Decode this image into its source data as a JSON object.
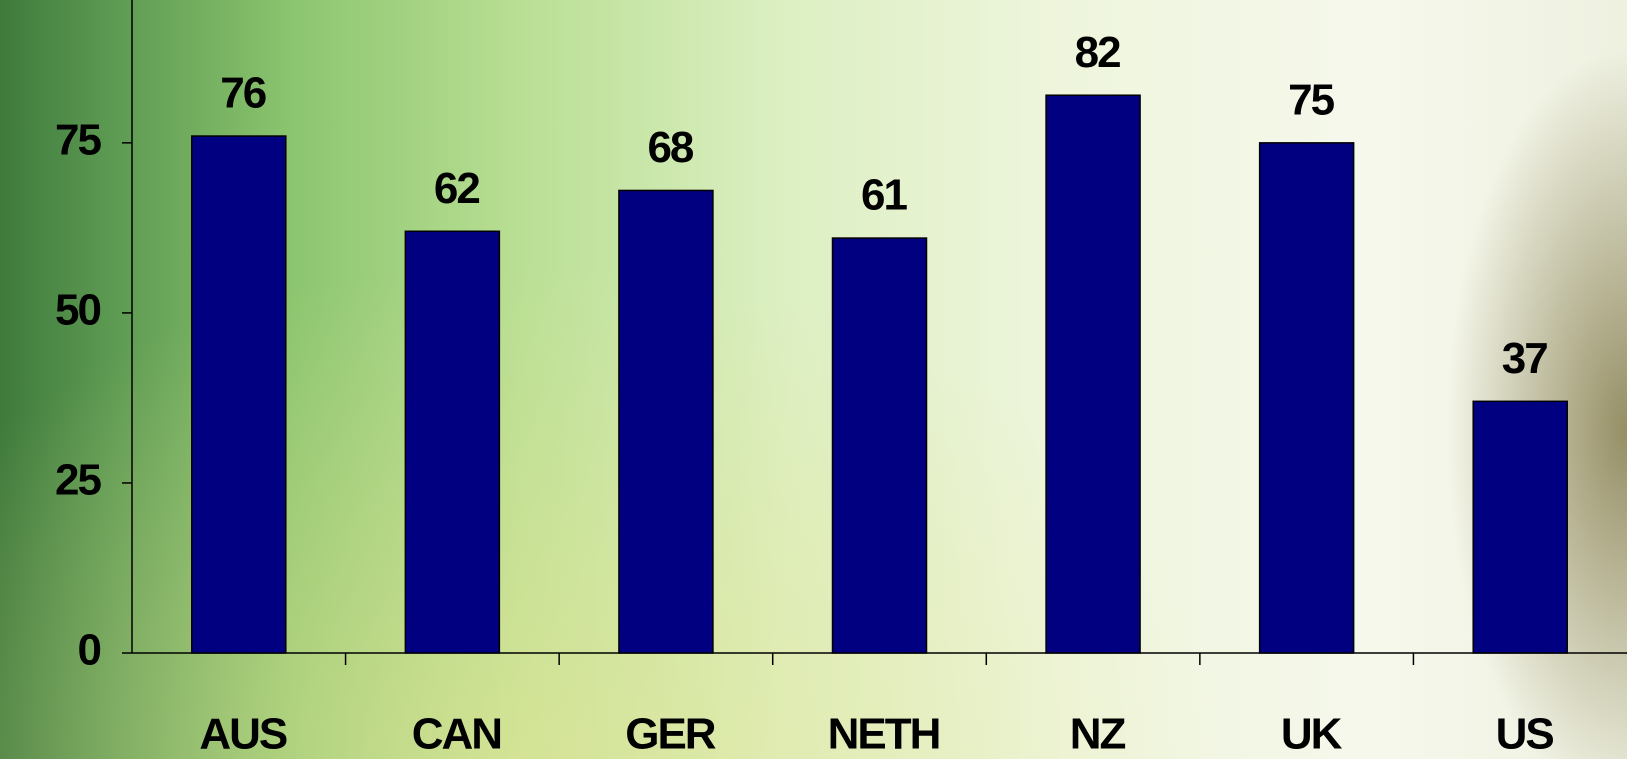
{
  "chart_data": {
    "type": "bar",
    "categories": [
      "AUS",
      "CAN",
      "GER",
      "NETH",
      "NZ",
      "UK",
      "US"
    ],
    "values": [
      76,
      62,
      68,
      61,
      82,
      75,
      37
    ],
    "color": "#000080",
    "ylim": [
      0,
      96
    ],
    "yticks": [
      0,
      25,
      50,
      75
    ],
    "grid": false
  }
}
